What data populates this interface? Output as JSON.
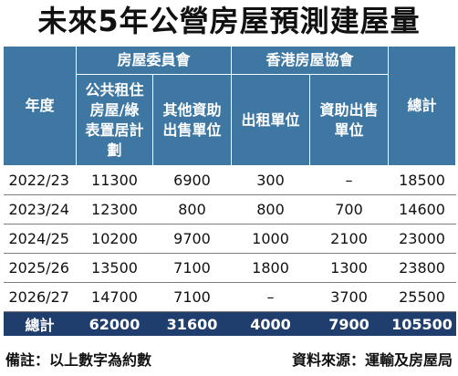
{
  "title": "未來5年公營房屋預測建屋量",
  "header": {
    "year": "年度",
    "group_ha": "房屋委員會",
    "group_hs": "香港房屋協會",
    "total": "總計",
    "cols": [
      "公共租住房屋/綠表置居計劃",
      "其他資助出售單位",
      "出租單位",
      "資助出售單位"
    ]
  },
  "rows": [
    {
      "year": "2022/23",
      "c1": "11300",
      "c2": "6900",
      "c3": "300",
      "c4": "–",
      "total": "18500"
    },
    {
      "year": "2023/24",
      "c1": "12300",
      "c2": "800",
      "c3": "800",
      "c4": "700",
      "total": "14600"
    },
    {
      "year": "2024/25",
      "c1": "10200",
      "c2": "9700",
      "c3": "1000",
      "c4": "2100",
      "total": "23000"
    },
    {
      "year": "2025/26",
      "c1": "13500",
      "c2": "7100",
      "c3": "1800",
      "c4": "1300",
      "total": "23800"
    },
    {
      "year": "2026/27",
      "c1": "14700",
      "c2": "7100",
      "c3": "–",
      "c4": "3700",
      "total": "25500"
    }
  ],
  "totals": {
    "label": "總計",
    "c1": "62000",
    "c2": "31600",
    "c3": "4000",
    "c4": "7900",
    "total": "105500"
  },
  "footer": {
    "note": "備註：以上數字為約數",
    "source": "資料來源：運輸及房屋局"
  },
  "colors": {
    "header_bg": "#3f77a3",
    "total_bg": "#1f3d6d"
  }
}
